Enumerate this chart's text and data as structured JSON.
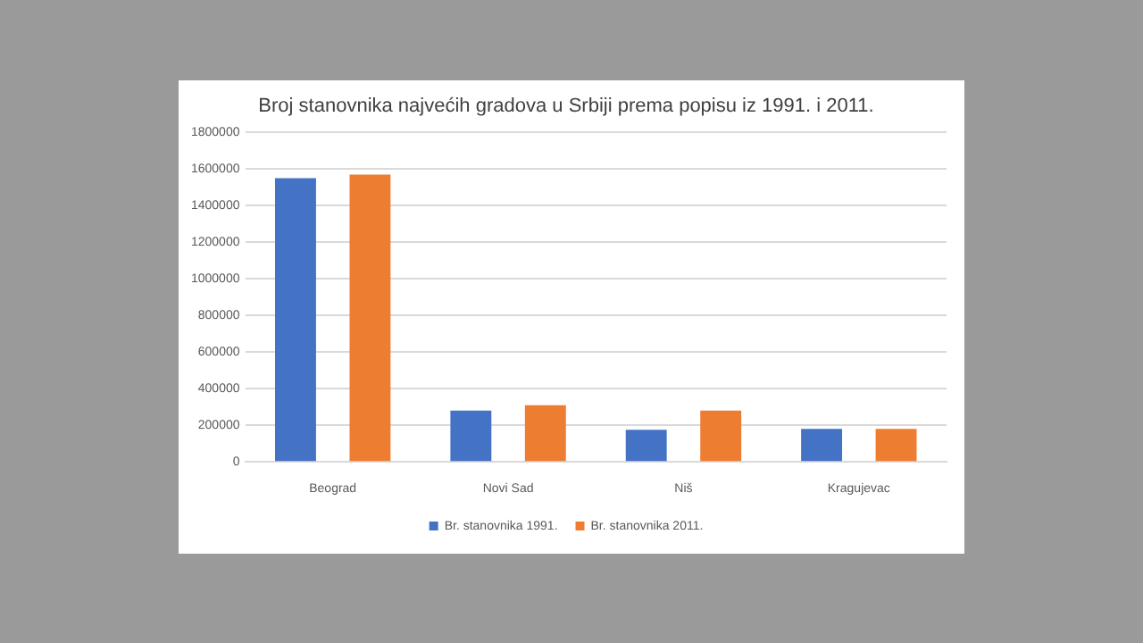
{
  "chart_data": {
    "type": "bar",
    "title": "Broj stanovnika najvećih gradova u Srbiji prema popisu iz 1991. i 2011.",
    "categories": [
      "Beograd",
      "Novi Sad",
      "Niš",
      "Kragujevac"
    ],
    "series": [
      {
        "name": "Br. stanovnika 1991.",
        "color": "#4472c4",
        "values": [
          1550000,
          280000,
          175000,
          180000
        ]
      },
      {
        "name": "Br. stanovnika 2011.",
        "color": "#ed7d31",
        "values": [
          1570000,
          310000,
          280000,
          180000
        ]
      }
    ],
    "ylim": [
      0,
      1800000
    ],
    "yticks": [
      0,
      200000,
      400000,
      600000,
      800000,
      1000000,
      1200000,
      1400000,
      1600000,
      1800000
    ],
    "grid": "y",
    "legend": "bottom"
  }
}
